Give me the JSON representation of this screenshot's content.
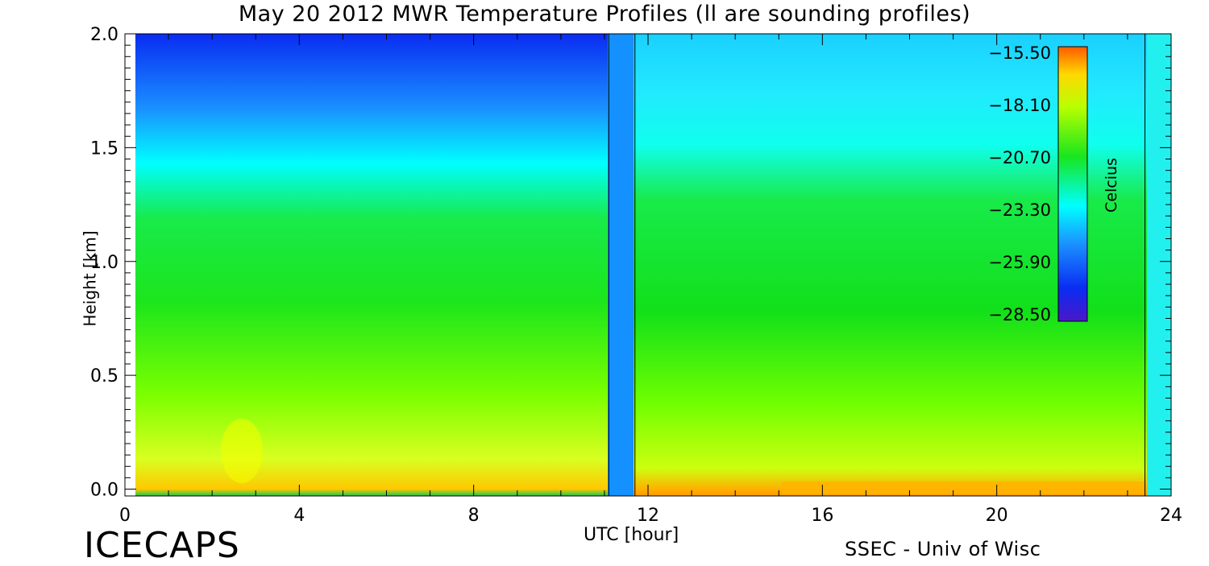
{
  "chart_data": {
    "type": "heatmap",
    "title": "May 20 2012 MWR Temperature Profiles (ll are sounding profiles)",
    "xlabel": "UTC [hour]",
    "ylabel": "Height [km]",
    "xlim": [
      0,
      24
    ],
    "ylim": [
      -0.03,
      2.0
    ],
    "x_ticks": [
      "0",
      "4",
      "8",
      "12",
      "16",
      "20",
      "24"
    ],
    "y_ticks": [
      "0.0",
      "0.5",
      "1.0",
      "1.5",
      "2.0"
    ],
    "sounding_hours": [
      11.1,
      11.7,
      23.4
    ],
    "colorbar": {
      "label": "Celcius",
      "ticks": [
        "-15.50",
        "-18.10",
        "-20.70",
        "-23.30",
        "-25.90",
        "-28.50"
      ],
      "range": [
        -28.5,
        -15.5
      ]
    }
  },
  "branding": {
    "project": "ICECAPS",
    "credit": "SSEC - Univ of Wisc"
  }
}
